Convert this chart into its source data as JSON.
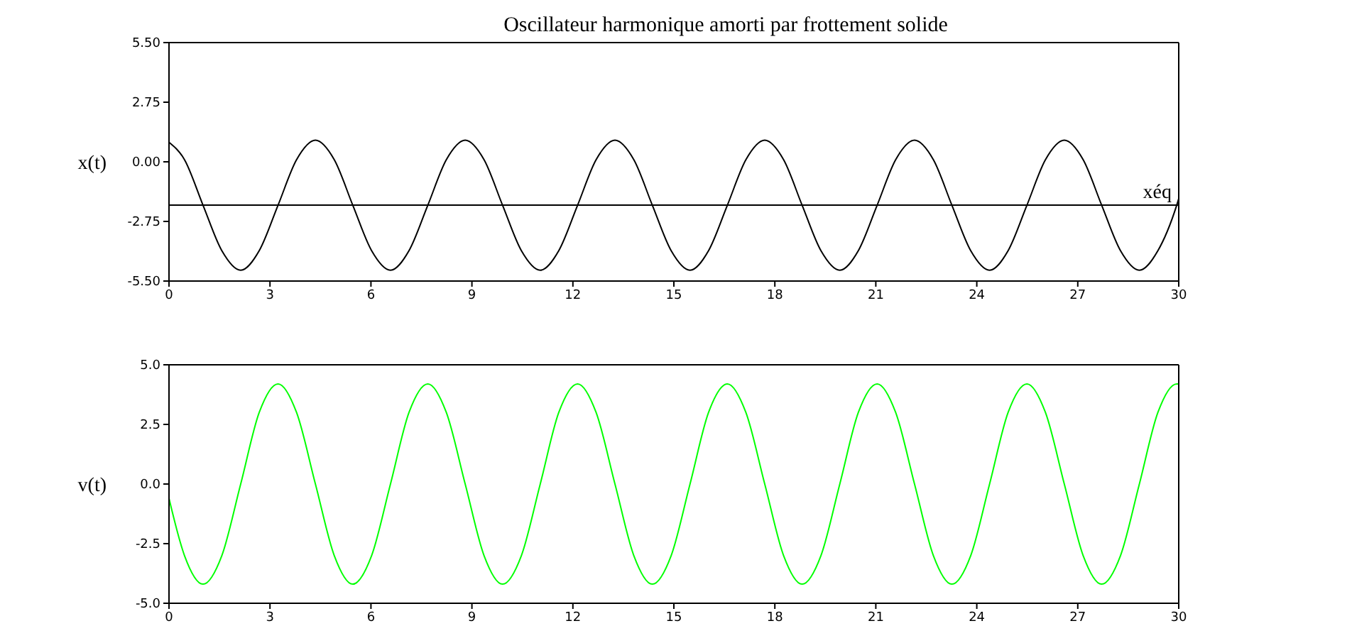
{
  "chart_data": [
    {
      "type": "line",
      "title": "Oscillateur harmonique amorti par frottement solide",
      "ylabel": "x(t)",
      "color": "#000000",
      "x": [
        0,
        0.46,
        1.01,
        1.57,
        2.13,
        2.68,
        3.24,
        3.79,
        4.35,
        4.91,
        5.46,
        6.02,
        6.58,
        7.13,
        7.69,
        8.24,
        8.8,
        9.36,
        9.91,
        10.47,
        11.03,
        11.58,
        12.14,
        12.69,
        13.25,
        13.81,
        14.36,
        14.92,
        15.48,
        16.03,
        16.59,
        17.14,
        17.7,
        18.26,
        18.81,
        19.37,
        19.93,
        20.48,
        21.04,
        21.59,
        22.15,
        22.71,
        23.26,
        23.82,
        24.38,
        24.93,
        25.49,
        26.04,
        26.6,
        27.16,
        27.71,
        28.27,
        28.83,
        29.38,
        29.94,
        30
      ],
      "values": [
        0.9,
        0.1,
        -2.0,
        -4.1,
        -5.0,
        -4.1,
        -2.0,
        0.1,
        1.0,
        0.1,
        -2.0,
        -4.1,
        -5.0,
        -4.1,
        -2.0,
        0.1,
        1.0,
        0.1,
        -2.0,
        -4.1,
        -5.0,
        -4.1,
        -2.0,
        0.1,
        1.0,
        0.1,
        -2.0,
        -4.1,
        -5.0,
        -4.1,
        -2.0,
        0.1,
        1.0,
        0.1,
        -2.0,
        -4.1,
        -5.0,
        -4.1,
        -2.0,
        0.1,
        1.0,
        0.1,
        -2.0,
        -4.1,
        -5.0,
        -4.1,
        -2.0,
        0.1,
        1.0,
        0.1,
        -2.0,
        -4.1,
        -5.0,
        -4.1,
        -2.0,
        -1.7
      ],
      "xlim": [
        0,
        30
      ],
      "xticks": [
        0,
        3,
        6,
        9,
        12,
        15,
        18,
        21,
        24,
        27,
        30
      ],
      "ylim": [
        -5.5,
        5.5
      ],
      "yticks": [
        {
          "value": -5.5,
          "label": "-5.50"
        },
        {
          "value": -2.75,
          "label": "-2.75"
        },
        {
          "value": 0,
          "label": "0.00"
        },
        {
          "value": 2.75,
          "label": "2.75"
        },
        {
          "value": 5.5,
          "label": "5.50"
        }
      ],
      "ref_lines": [
        {
          "axis": "y",
          "value": -2,
          "label": "xéq",
          "color": "#000000"
        }
      ]
    },
    {
      "type": "line",
      "ylabel": "v(t)",
      "color": "#00ff00",
      "x": [
        0,
        0.46,
        1.01,
        1.57,
        2.13,
        2.68,
        3.24,
        3.79,
        4.35,
        4.91,
        5.46,
        6.02,
        6.58,
        7.13,
        7.69,
        8.24,
        8.8,
        9.36,
        9.91,
        10.47,
        11.03,
        11.58,
        12.14,
        12.69,
        13.25,
        13.81,
        14.36,
        14.92,
        15.48,
        16.03,
        16.59,
        17.14,
        17.7,
        18.26,
        18.81,
        19.37,
        19.93,
        20.48,
        21.04,
        21.59,
        22.15,
        22.71,
        23.26,
        23.82,
        24.38,
        24.93,
        25.49,
        26.04,
        26.6,
        27.16,
        27.71,
        28.27,
        28.83,
        29.38,
        29.94,
        30
      ],
      "values": [
        -0.6,
        -3.0,
        -4.2,
        -3.0,
        0,
        3.0,
        4.2,
        3.0,
        0,
        -3.0,
        -4.2,
        -3.0,
        0,
        3.0,
        4.2,
        3.0,
        0,
        -3.0,
        -4.2,
        -3.0,
        0,
        3.0,
        4.2,
        3.0,
        0,
        -3.0,
        -4.2,
        -3.0,
        0,
        3.0,
        4.2,
        3.0,
        0,
        -3.0,
        -4.2,
        -3.0,
        0,
        3.0,
        4.2,
        3.0,
        0,
        -3.0,
        -4.2,
        -3.0,
        0,
        3.0,
        4.2,
        3.0,
        0,
        -3.0,
        -4.2,
        -3.0,
        0,
        3.0,
        4.2,
        4.2
      ],
      "xlim": [
        0,
        30
      ],
      "xticks": [
        0,
        3,
        6,
        9,
        12,
        15,
        18,
        21,
        24,
        27,
        30
      ],
      "ylim": [
        -5,
        5
      ],
      "yticks": [
        {
          "value": -5,
          "label": "-5.0"
        },
        {
          "value": -2.5,
          "label": "-2.5"
        },
        {
          "value": 0,
          "label": "0.0"
        },
        {
          "value": 2.5,
          "label": "2.5"
        },
        {
          "value": 5,
          "label": "5.0"
        }
      ]
    }
  ]
}
